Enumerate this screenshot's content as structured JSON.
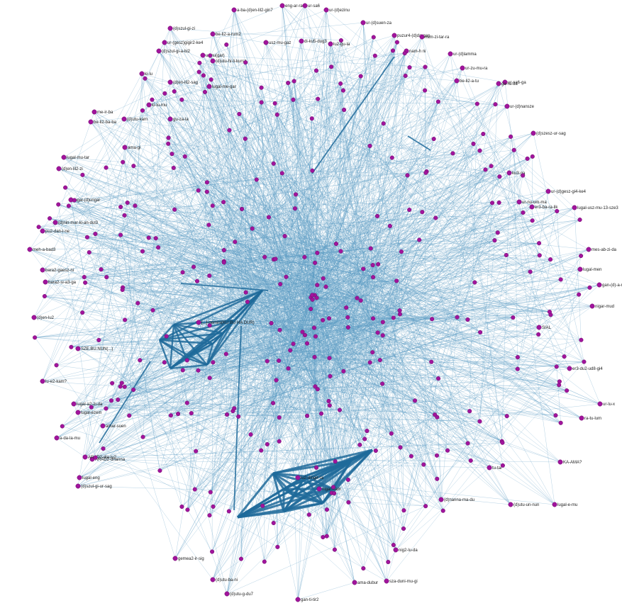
{
  "graph": {
    "colors": {
      "edge": "#1f6a9a",
      "edge_light": "#5b9cc4",
      "node": "#a1149c",
      "node_stroke": "#6e0b6b",
      "label": "#222222",
      "background": "#ffffff"
    },
    "highlighted_clusters": [
      {
        "name": "left-dense-cluster",
        "nodes": [
          "[...]-gemini(KU BU HA DUR)",
          "SZE.BU.NUN(...)",
          "ARAD2-dnanna",
          "amar-suen"
        ]
      },
      {
        "name": "bottom-dense-cluster",
        "nodes": [
          "lugal-azida",
          "lugal-ezem",
          "nigar-kam",
          "lu2-dingir-ra"
        ]
      }
    ],
    "nodes": [
      {
        "id": "n1",
        "label": "a-ba-(d)en-lil2-gin7"
      },
      {
        "id": "n2",
        "label": "eng-ar-ra"
      },
      {
        "id": "n3",
        "label": "ur-(d)ezinu"
      },
      {
        "id": "n4",
        "label": "ur-sa6"
      },
      {
        "id": "n5",
        "label": "ur-(d)suen-za"
      },
      {
        "id": "n6",
        "label": "(d)szul-gi-zi"
      },
      {
        "id": "n7",
        "label": "ur-(gesz)gigir2-ke4"
      },
      {
        "id": "n8",
        "label": "(d)szul-gi-a-bi2"
      },
      {
        "id": "n9",
        "label": "be-li2-a-rum2"
      },
      {
        "id": "n10",
        "label": "ur-nu(gar)"
      },
      {
        "id": "n11",
        "label": "(d)utu-hi-li-kursz"
      },
      {
        "id": "n12",
        "label": "usz-mu-gaz"
      },
      {
        "id": "n13",
        "label": "di-ku5-dug3"
      },
      {
        "id": "n14",
        "label": "lu2-gu-la"
      },
      {
        "id": "n15",
        "label": "puzur4-(d)da-gan"
      },
      {
        "id": "n16",
        "label": "nam-zi-tar-ra"
      },
      {
        "id": "n17",
        "label": "nam-h ni"
      },
      {
        "id": "n18",
        "label": "ur-(d)lamma"
      },
      {
        "id": "n19",
        "label": "(d)en-lil2-sag"
      },
      {
        "id": "n20",
        "label": "ki-lu"
      },
      {
        "id": "n21",
        "label": "ur-sa6-ga"
      },
      {
        "id": "n22",
        "label": "ki-lu-mu"
      },
      {
        "id": "n23",
        "label": "lugal-me-gar"
      },
      {
        "id": "n24",
        "label": "ur-zu-mu-ra"
      },
      {
        "id": "n25",
        "label": "be-li2-a-tu"
      },
      {
        "id": "n26",
        "label": "ga-ra-da"
      },
      {
        "id": "n27",
        "label": "ur-(d)nansze"
      },
      {
        "id": "n28",
        "label": "me-ir-ba"
      },
      {
        "id": "n29",
        "label": "(d)utu-kam"
      },
      {
        "id": "n30",
        "label": "gu-za-la"
      },
      {
        "id": "n31",
        "label": "be-li2-ba-ba"
      },
      {
        "id": "n32",
        "label": "ama-gi"
      },
      {
        "id": "n33",
        "label": "(d)szesz-ur-sag"
      },
      {
        "id": "n34",
        "label": "lugal-mu-tar"
      },
      {
        "id": "n35",
        "label": "(d)en-lil2-zi"
      },
      {
        "id": "n36",
        "label": "ku3-ga"
      },
      {
        "id": "n37",
        "label": "ur-(d)gesz-gi4-ke4"
      },
      {
        "id": "n38",
        "label": "lugal-(d)ungal"
      },
      {
        "id": "n39",
        "label": "ur-nu-um-ma"
      },
      {
        "id": "n40",
        "label": "er3-ba-ra-lik"
      },
      {
        "id": "n41",
        "label": "lugal-usz-mu-13-sze3"
      },
      {
        "id": "n42",
        "label": "(d)nin-mar-ki-an-dul3"
      },
      {
        "id": "n43",
        "label": "pu2-dan-i-ne"
      },
      {
        "id": "n44",
        "label": "meh-a-bad3"
      },
      {
        "id": "n45",
        "label": "mes-ab-zi-da"
      },
      {
        "id": "n46",
        "label": "bara2-gaesz-ni"
      },
      {
        "id": "n47",
        "label": "lugal-men"
      },
      {
        "id": "n48",
        "label": "bara2-si-a3-ga"
      },
      {
        "id": "n49",
        "label": "gan-(d)-a-mu-gesz"
      },
      {
        "id": "n50",
        "label": "(d)en-lu2"
      },
      {
        "id": "n51",
        "label": "nigar-mud"
      },
      {
        "id": "n52",
        "label": "[...]-gemini(KU BU HA DUR)"
      },
      {
        "id": "n53",
        "label": "SZE.BU.NUN(...)"
      },
      {
        "id": "n54",
        "label": "SIAL"
      },
      {
        "id": "n55",
        "label": "lu-e2-kam?"
      },
      {
        "id": "n56",
        "label": "ur-lu-x"
      },
      {
        "id": "n57",
        "label": "er3-du2-ud8-gi4"
      },
      {
        "id": "n58",
        "label": "lugal-a2-zi-da"
      },
      {
        "id": "n59",
        "label": "lugal-ezem"
      },
      {
        "id": "n60",
        "label": "ARAD2-dnanna"
      },
      {
        "id": "n61",
        "label": "amar-suen"
      },
      {
        "id": "n62",
        "label": "ra-tu-lum"
      },
      {
        "id": "n63",
        "label": "KA-AMA?"
      },
      {
        "id": "n64",
        "label": "lugal-e-mu"
      },
      {
        "id": "n65",
        "label": "(d)utu-un-nun"
      },
      {
        "id": "n66",
        "label": "gan-ti-tir2"
      },
      {
        "id": "n67",
        "label": "ama-dubur"
      },
      {
        "id": "n68",
        "label": "sza-duni-mu-gi"
      },
      {
        "id": "n69",
        "label": "(d)utu-ba-ni"
      },
      {
        "id": "n70",
        "label": "(d)utu-g-du7"
      },
      {
        "id": "n71",
        "label": "gemea2-ir-sig"
      },
      {
        "id": "n72",
        "label": "nig2-lu-da"
      },
      {
        "id": "n73",
        "label": "(d)szul-gi-ur-sag"
      },
      {
        "id": "n74",
        "label": "lugal-eng"
      },
      {
        "id": "n75",
        "label": "ARAD2-dla-lu2"
      },
      {
        "id": "n76",
        "label": "a-da-la-mu"
      },
      {
        "id": "n77",
        "label": "(d)nanna-ma-du"
      },
      {
        "id": "n78",
        "label": "tu-tar"
      },
      {
        "id": "n79",
        "label": "nigar-kam"
      },
      {
        "id": "n80",
        "label": "lu2-dingir-ra"
      }
    ]
  }
}
